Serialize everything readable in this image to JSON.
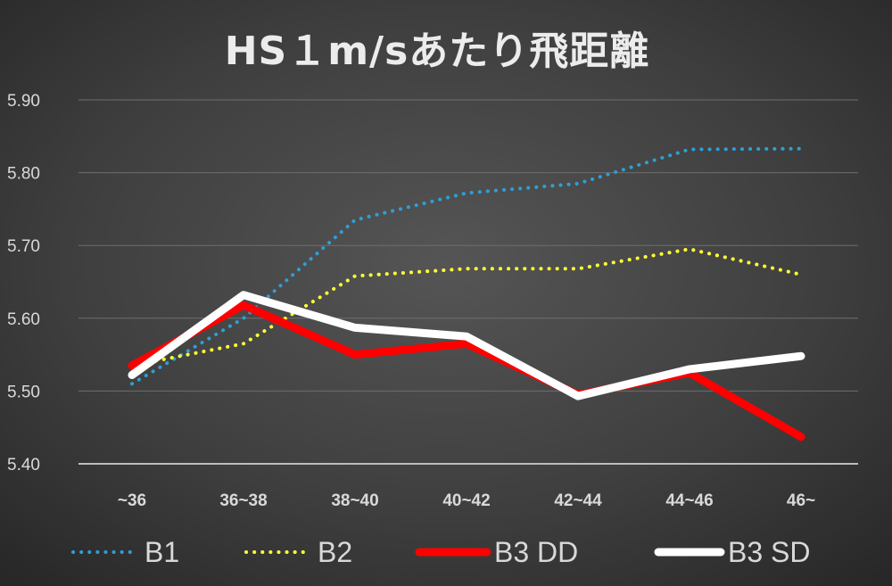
{
  "chart_data": {
    "type": "line",
    "title": "HS１m/sあたり飛距離",
    "categories": [
      "~36",
      "36~38",
      "38~40",
      "40~42",
      "42~44",
      "44~46",
      "46~"
    ],
    "ylim": [
      5.4,
      5.9
    ],
    "yticks": [
      "5.40",
      "5.50",
      "5.60",
      "5.70",
      "5.80",
      "5.90"
    ],
    "grid": true,
    "legend_position": "bottom",
    "series": [
      {
        "name": "B1",
        "values": [
          5.51,
          5.6,
          5.735,
          5.772,
          5.785,
          5.832,
          5.833
        ],
        "color": "#2e9fd4",
        "style": "dotted"
      },
      {
        "name": "B2",
        "values": [
          5.535,
          5.565,
          5.658,
          5.668,
          5.668,
          5.695,
          5.66
        ],
        "color": "#ffff33",
        "style": "dotted"
      },
      {
        "name": "B3 DD",
        "values": [
          5.535,
          5.618,
          5.55,
          5.565,
          5.495,
          5.525,
          5.437
        ],
        "color": "#ff0000",
        "style": "solid"
      },
      {
        "name": "B3 SD",
        "values": [
          5.522,
          5.632,
          5.587,
          5.575,
          5.493,
          5.53,
          5.548
        ],
        "color": "#ffffff",
        "style": "solid"
      }
    ]
  }
}
